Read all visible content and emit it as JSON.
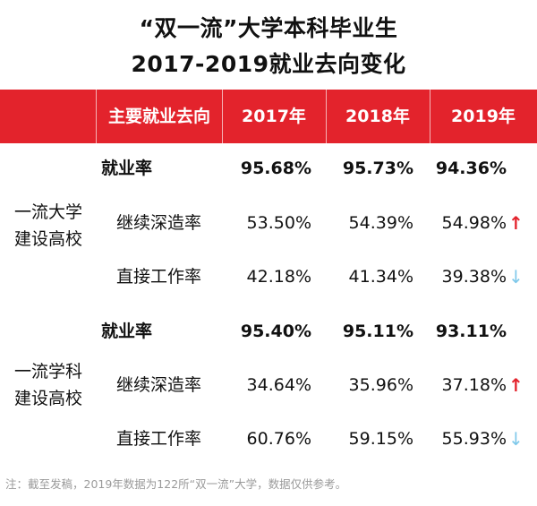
{
  "title": {
    "line1": "“双一流”大学本科毕业生",
    "line2": "2017-2019就业去向变化"
  },
  "header": {
    "category": "主要就业去向",
    "y2017": "2017年",
    "y2018": "2018年",
    "y2019": "2019年"
  },
  "groups": [
    {
      "label_line1": "一流大学",
      "label_line2": "建设高校",
      "rows": [
        {
          "label": "就业率",
          "v2017": "95.68%",
          "v2018": "95.73%",
          "v2019": "94.36%",
          "trend": ""
        },
        {
          "label": "继续深造率",
          "v2017": "53.50%",
          "v2018": "54.39%",
          "v2019": "54.98%",
          "trend": "↑"
        },
        {
          "label": "直接工作率",
          "v2017": "42.18%",
          "v2018": "41.34%",
          "v2019": "39.38%",
          "trend": "↓"
        }
      ]
    },
    {
      "label_line1": "一流学科",
      "label_line2": "建设高校",
      "rows": [
        {
          "label": "就业率",
          "v2017": "95.40%",
          "v2018": "95.11%",
          "v2019": "93.11%",
          "trend": ""
        },
        {
          "label": "继续深造率",
          "v2017": "34.64%",
          "v2018": "35.96%",
          "v2019": "37.18%",
          "trend": "↑"
        },
        {
          "label": "直接工作率",
          "v2017": "60.76%",
          "v2018": "59.15%",
          "v2019": "55.93%",
          "trend": "↓"
        }
      ]
    }
  ],
  "note": "注：截至发稿，2019年数据为122所“双一流”大学，数据仅供参考。",
  "colors": {
    "header_bg": "#e3232c",
    "up_arrow": "#e3232c",
    "down_arrow": "#7ec8ea"
  }
}
